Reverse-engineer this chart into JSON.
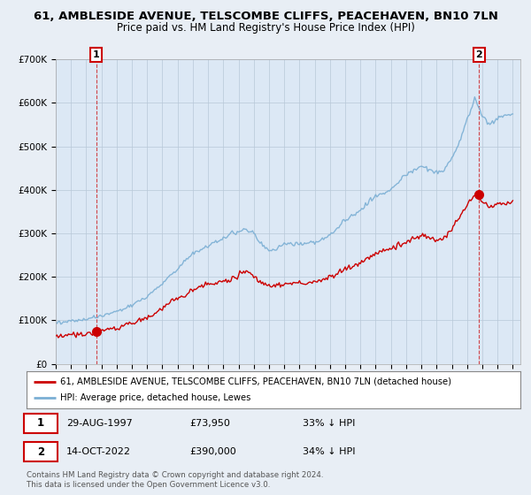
{
  "title1": "61, AMBLESIDE AVENUE, TELSCOMBE CLIFFS, PEACEHAVEN, BN10 7LN",
  "title2": "Price paid vs. HM Land Registry's House Price Index (HPI)",
  "legend_line1": "61, AMBLESIDE AVENUE, TELSCOMBE CLIFFS, PEACEHAVEN, BN10 7LN (detached house)",
  "legend_line2": "HPI: Average price, detached house, Lewes",
  "annotation1_date": "29-AUG-1997",
  "annotation1_price": "£73,950",
  "annotation1_hpi": "33% ↓ HPI",
  "annotation2_date": "14-OCT-2022",
  "annotation2_price": "£390,000",
  "annotation2_hpi": "34% ↓ HPI",
  "footer": "Contains HM Land Registry data © Crown copyright and database right 2024.\nThis data is licensed under the Open Government Licence v3.0.",
  "sale1_x": 1997.66,
  "sale1_y": 73950,
  "sale2_x": 2022.79,
  "sale2_y": 390000,
  "hpi_color": "#7bafd4",
  "price_color": "#cc0000",
  "bg_color": "#e8eef5",
  "plot_bg": "#dce8f5",
  "ylim": [
    0,
    700000
  ],
  "xlim_start": 1995.0,
  "xlim_end": 2025.5
}
